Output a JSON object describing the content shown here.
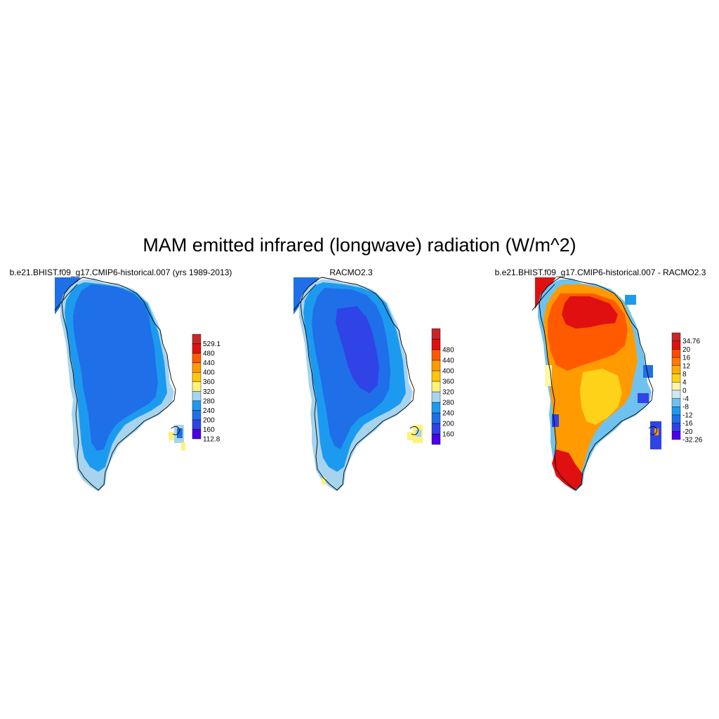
{
  "title": "MAM emitted infrared (longwave) radiation (W/m^2)",
  "panels": [
    {
      "title": "b.e21.BHIST.f09_g17.CMIP6-historical.007 (yrs 1989-2013)",
      "colorbar": {
        "colors": [
          "#4a00e8",
          "#2f43e6",
          "#1f6fe8",
          "#1c9af0",
          "#a6d4ee",
          "#fff27a",
          "#ffc50a",
          "#ff9a00",
          "#ff5a00",
          "#e01010",
          "#c62828"
        ],
        "labels": [
          "112.8",
          "160",
          "200",
          "240",
          "280",
          "320",
          "360",
          "400",
          "440",
          "480",
          "529.1"
        ]
      }
    },
    {
      "title": "RACMO2.3",
      "colorbar": {
        "colors": [
          "#4a00e8",
          "#2f43e6",
          "#1f6fe8",
          "#1c9af0",
          "#a6d4ee",
          "#fff27a",
          "#ffc50a",
          "#ff9a00",
          "#ff5a00",
          "#e01010",
          "#c62828"
        ],
        "labels": [
          "160",
          "200",
          "240",
          "280",
          "320",
          "360",
          "400",
          "440",
          "480"
        ]
      }
    },
    {
      "title": "b.e21.BHIST.f09_g17.CMIP6-historical.007 - RACMO2.3",
      "colorbar": {
        "colors": [
          "#4a00e8",
          "#2f43e6",
          "#1f6fe8",
          "#1c9af0",
          "#6fc2f0",
          "#cfe8f6",
          "#fff6a8",
          "#ffd21a",
          "#ffac00",
          "#ff7a00",
          "#ff4a00",
          "#e01010",
          "#c62828"
        ],
        "labels": [
          "-32.26",
          "-20",
          "-16",
          "-12",
          "-8",
          "-4",
          "0",
          "4",
          "8",
          "12",
          "16",
          "20",
          "34.76"
        ]
      }
    }
  ]
}
